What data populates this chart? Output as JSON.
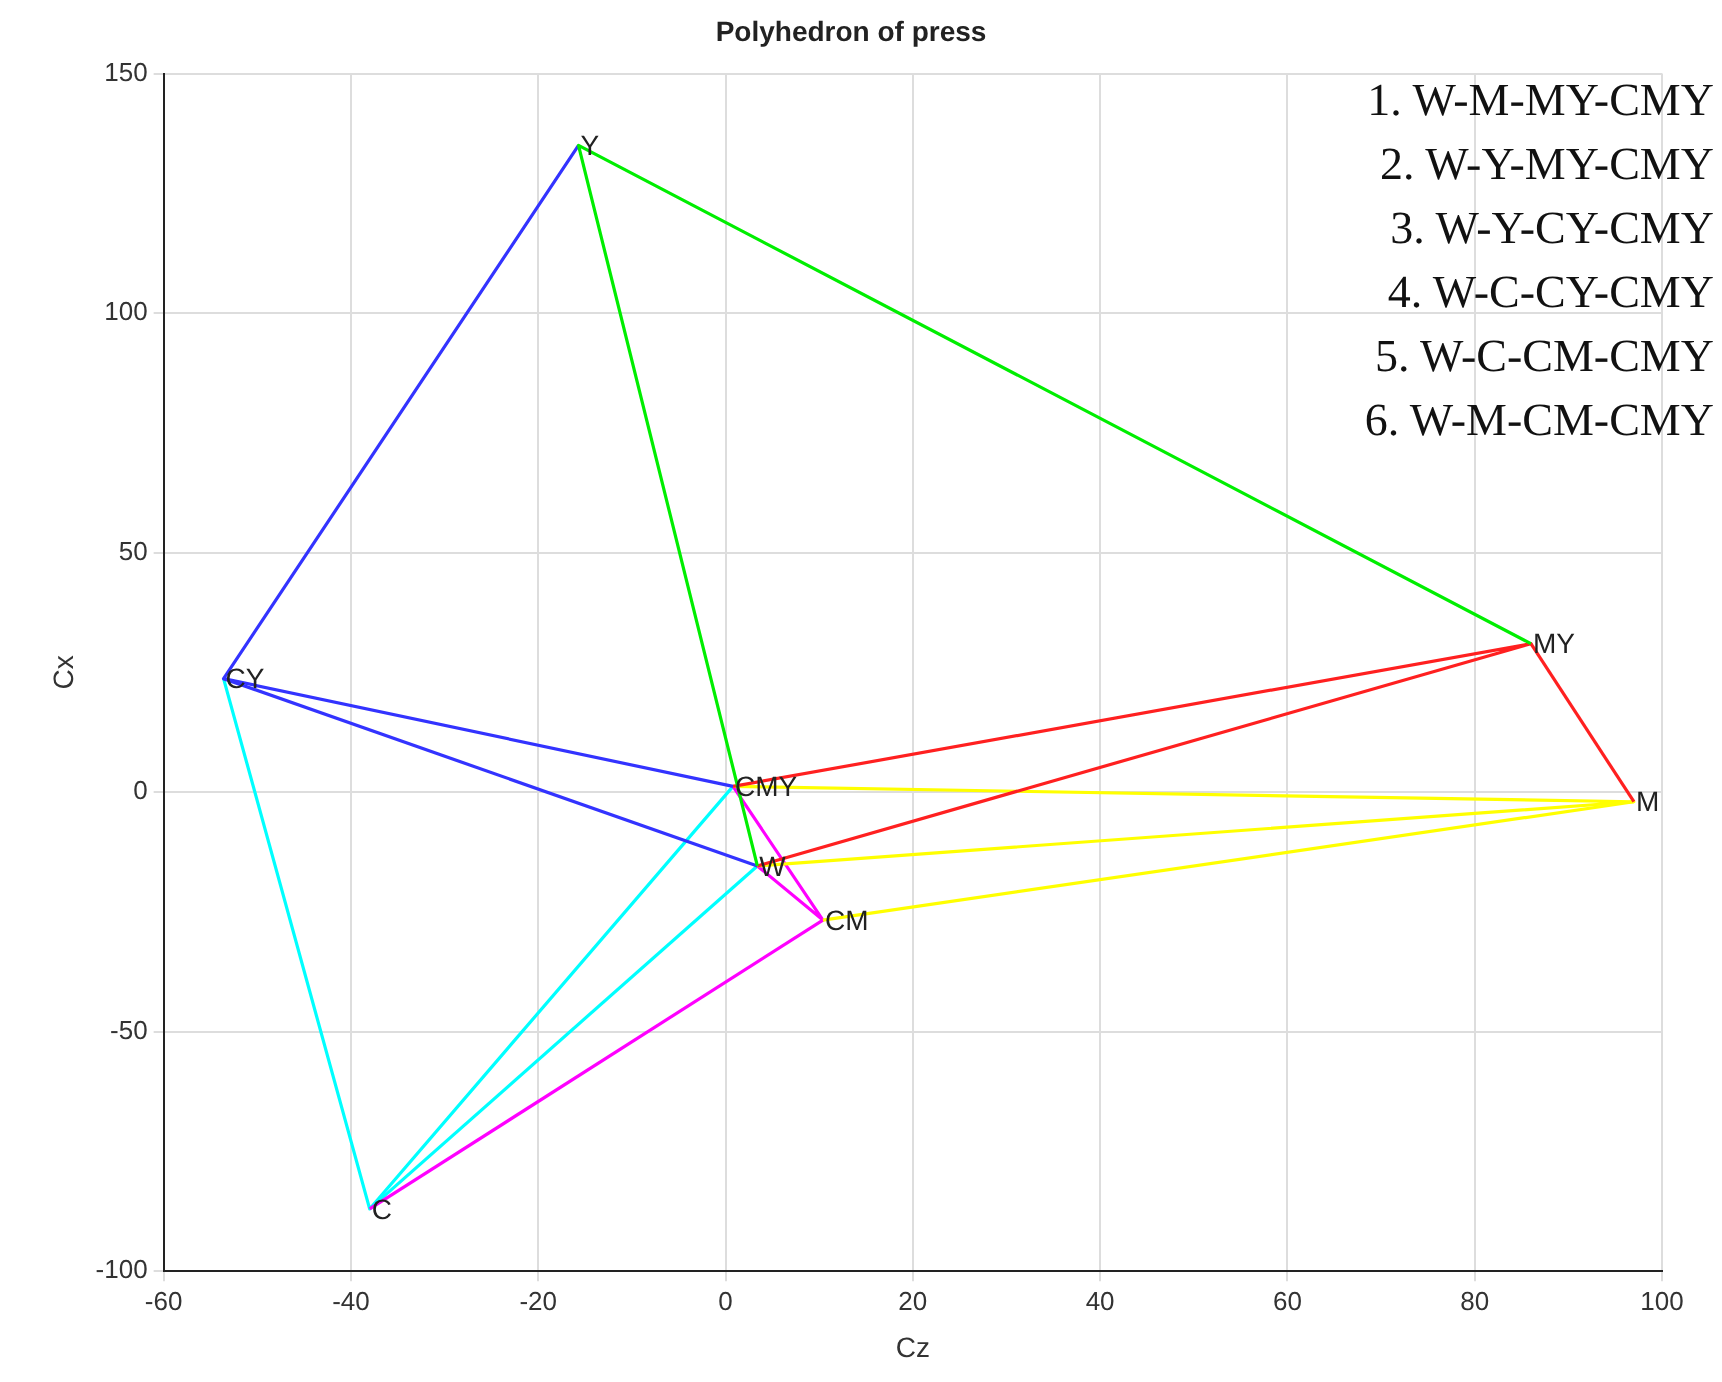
{
  "chart_data": {
    "type": "line",
    "title": "Polyhedron of press",
    "xlabel": "Cz",
    "ylabel": "Cx",
    "xlim": [
      -60,
      100
    ],
    "xticks": [
      -60,
      -40,
      -20,
      0,
      20,
      40,
      60,
      80,
      100
    ],
    "ylim": [
      -100,
      150
    ],
    "yticks": [
      -100,
      -50,
      0,
      50,
      100,
      150
    ],
    "grid": true,
    "legend": false,
    "marker": "none",
    "line_style": "solid",
    "series": [
      {
        "color": "#00ee00",
        "x": [
          86,
          -15.7,
          3.4
        ],
        "values": [
          31,
          135,
          -15.4
        ]
      },
      {
        "color": "#3333ff",
        "x": [
          -15.7,
          -53.6,
          0.8
        ],
        "values": [
          135,
          23.7,
          1.2
        ]
      },
      {
        "color": "#3333ff",
        "x": [
          -53.6,
          3.4
        ],
        "values": [
          23.7,
          -15.4
        ]
      },
      {
        "color": "#ff2020",
        "x": [
          0.8,
          86,
          3.4
        ],
        "values": [
          1.2,
          31,
          -15.4
        ]
      },
      {
        "color": "#ff2020",
        "x": [
          86,
          97
        ],
        "values": [
          31,
          -2
        ]
      },
      {
        "color": "#ffff00",
        "x": [
          0.8,
          97,
          3.4
        ],
        "values": [
          1.2,
          -2,
          -15.4
        ]
      },
      {
        "color": "#ffff00",
        "x": [
          97,
          10.4
        ],
        "values": [
          -2,
          -26.7
        ]
      },
      {
        "color": "#ff00ff",
        "x": [
          0.8,
          10.4,
          3.4
        ],
        "values": [
          1.2,
          -26.7,
          -15.4
        ]
      },
      {
        "color": "#ff00ff",
        "x": [
          10.4,
          -38
        ],
        "values": [
          -26.7,
          -87
        ]
      },
      {
        "color": "#00ffff",
        "x": [
          0.8,
          -38,
          -53.6
        ],
        "values": [
          1.2,
          -87,
          23.7
        ]
      },
      {
        "color": "#00ffff",
        "x": [
          -38,
          3.4
        ],
        "values": [
          -87,
          -15.4
        ]
      }
    ],
    "annotations": [
      {
        "text": "Y",
        "x": -15.7,
        "y": 135
      },
      {
        "text": "CY",
        "x": -53.6,
        "y": 23.7
      },
      {
        "text": "CMY",
        "x": 0.8,
        "y": 1.2
      },
      {
        "text": "W",
        "x": 3.4,
        "y": -15.4
      },
      {
        "text": "CM",
        "x": 10.4,
        "y": -26.7
      },
      {
        "text": "C",
        "x": -38,
        "y": -87
      },
      {
        "text": "MY",
        "x": 86,
        "y": 31
      },
      {
        "text": "M",
        "x": 97,
        "y": -2
      },
      "1. W-M-MY-CMY",
      "2. W-Y-MY-CMY",
      "3. W-Y-CY-CMY",
      "4. W-C-CY-CMY",
      "5. W-C-CM-CMY",
      "6. W-M-CM-CMY"
    ]
  }
}
